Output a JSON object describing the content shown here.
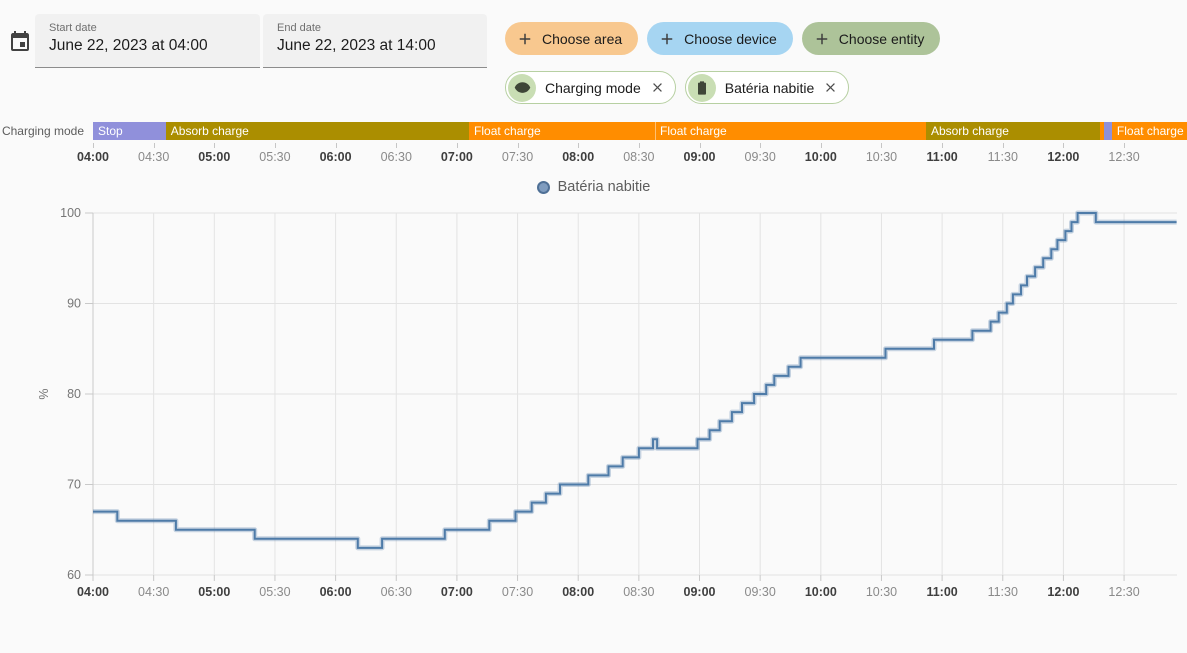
{
  "header": {
    "start_date": {
      "label": "Start date",
      "value": "June 22, 2023 at 04:00"
    },
    "end_date": {
      "label": "End date",
      "value": "June 22, 2023 at 14:00"
    },
    "add_chips": [
      {
        "id": "area",
        "label": "Choose area",
        "bg": "#f8c88f"
      },
      {
        "id": "device",
        "label": "Choose device",
        "bg": "#a6d5f2"
      },
      {
        "id": "entity",
        "label": "Choose entity",
        "bg": "#adc399"
      }
    ],
    "filter_chips": [
      {
        "id": "charging-mode",
        "label": "Charging mode",
        "icon": "eye-icon"
      },
      {
        "id": "bateria-nabitie",
        "label": "Batéria nabitie",
        "icon": "battery-icon"
      }
    ]
  },
  "timeline": {
    "label": "Charging mode",
    "segments": [
      {
        "state": "Stop",
        "start": "04:00",
        "end": "04:36",
        "color": "#9090db"
      },
      {
        "state": "Absorb charge",
        "start": "04:36",
        "end": "07:06",
        "color": "#ab8e00"
      },
      {
        "state": "Float charge",
        "start": "07:06",
        "end": "08:38",
        "color": "#ff8d00"
      },
      {
        "state": "Float charge",
        "start": "08:38",
        "end": "10:52",
        "color": "#ff8d00"
      },
      {
        "state": "Absorb charge",
        "start": "10:52",
        "end": "12:18",
        "color": "#ab8e00"
      },
      {
        "state": "Float charge",
        "start": "12:18",
        "end": "12:20",
        "color": "#ff8d00"
      },
      {
        "state": "Stop",
        "start": "12:20",
        "end": "12:24",
        "color": "#9090db"
      },
      {
        "state": "Float charge",
        "start": "12:24",
        "end": "13:01",
        "color": "#ff8d00"
      }
    ]
  },
  "legend": {
    "label": "Batéria nabitie",
    "marker_fill": "#7f9cbf",
    "marker_border": "#4f7096"
  },
  "chart_data": {
    "type": "line",
    "step": "after",
    "title": "",
    "xlabel": "",
    "ylabel": "%",
    "ylim": [
      60,
      100
    ],
    "yticks": [
      60,
      70,
      80,
      90,
      100
    ],
    "x_start": "04:00",
    "x_end": "12:56",
    "x_ticks": [
      "04:00",
      "04:30",
      "05:00",
      "05:30",
      "06:00",
      "06:30",
      "07:00",
      "07:30",
      "08:00",
      "08:30",
      "09:00",
      "09:30",
      "10:00",
      "10:30",
      "11:00",
      "11:30",
      "12:00",
      "12:30"
    ],
    "grid": true,
    "legend_position": "top-center",
    "series": [
      {
        "name": "Batéria nabitie",
        "color": "#4e7ba8",
        "halo_color": "rgba(78,123,168,0.3)",
        "points": [
          [
            "04:00",
            67
          ],
          [
            "04:12",
            66
          ],
          [
            "04:41",
            65
          ],
          [
            "05:20",
            64
          ],
          [
            "06:11",
            63
          ],
          [
            "06:23",
            64
          ],
          [
            "06:54",
            65
          ],
          [
            "07:16",
            66
          ],
          [
            "07:29",
            67
          ],
          [
            "07:37",
            68
          ],
          [
            "07:44",
            69
          ],
          [
            "07:51",
            70
          ],
          [
            "08:05",
            71
          ],
          [
            "08:15",
            72
          ],
          [
            "08:22",
            73
          ],
          [
            "08:30",
            74
          ],
          [
            "08:37",
            75
          ],
          [
            "08:39",
            74
          ],
          [
            "08:59",
            75
          ],
          [
            "09:05",
            76
          ],
          [
            "09:10",
            77
          ],
          [
            "09:16",
            78
          ],
          [
            "09:21",
            79
          ],
          [
            "09:27",
            80
          ],
          [
            "09:33",
            81
          ],
          [
            "09:37",
            82
          ],
          [
            "09:44",
            83
          ],
          [
            "09:50",
            84
          ],
          [
            "10:32",
            85
          ],
          [
            "10:56",
            86
          ],
          [
            "11:15",
            87
          ],
          [
            "11:24",
            88
          ],
          [
            "11:28",
            89
          ],
          [
            "11:32",
            90
          ],
          [
            "11:35",
            91
          ],
          [
            "11:39",
            92
          ],
          [
            "11:42",
            93
          ],
          [
            "11:46",
            94
          ],
          [
            "11:50",
            95
          ],
          [
            "11:54",
            96
          ],
          [
            "11:57",
            97
          ],
          [
            "12:01",
            98
          ],
          [
            "12:04",
            99
          ],
          [
            "12:07",
            100
          ],
          [
            "12:16",
            99
          ],
          [
            "12:56",
            99
          ]
        ]
      }
    ]
  }
}
